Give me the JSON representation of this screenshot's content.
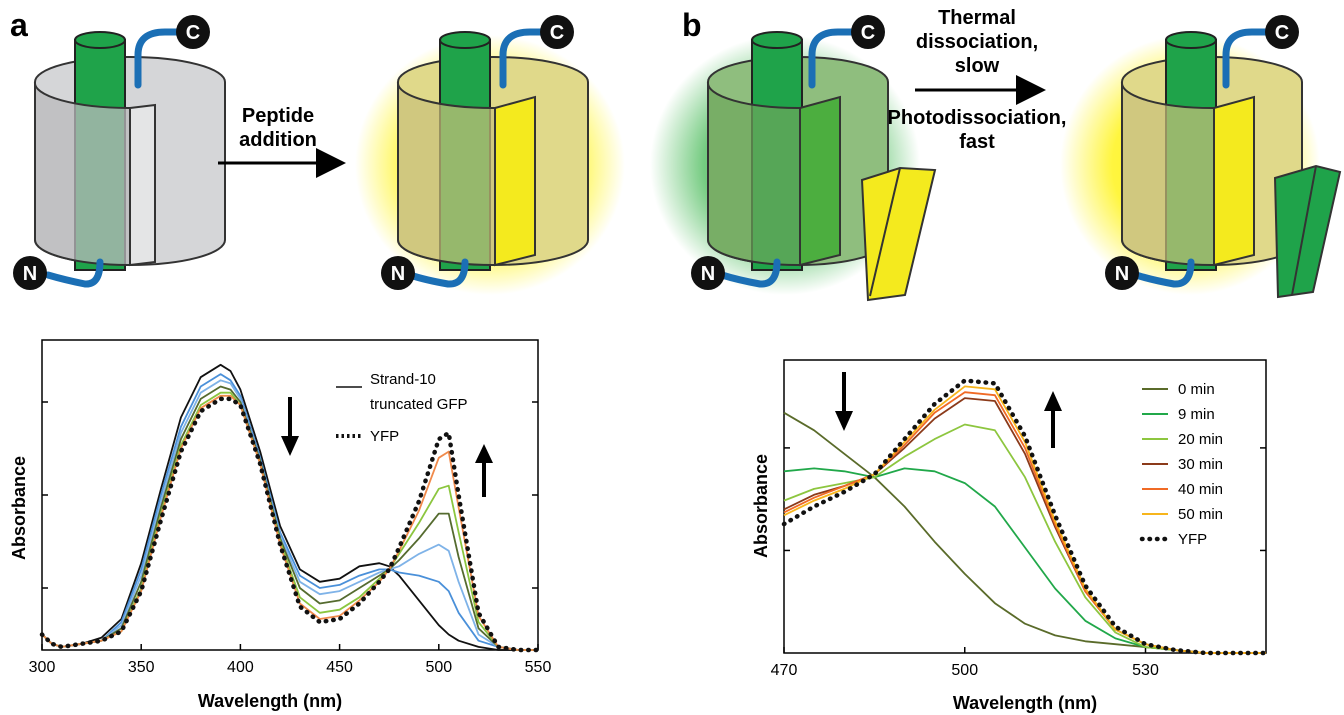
{
  "panels": {
    "a": {
      "letter": "a",
      "arrow_label_lines": [
        "Peptide",
        "addition"
      ],
      "termini": {
        "n": "N",
        "c": "C"
      }
    },
    "b": {
      "letter": "b",
      "arrow_label_top_lines": [
        "Thermal",
        "dissociation,",
        "slow"
      ],
      "arrow_label_bottom_lines": [
        "Photodissociation,",
        "fast"
      ],
      "termini": {
        "n": "N",
        "c": "C"
      }
    }
  },
  "colors": {
    "strand_green": "#1fa34a",
    "linker_blue": "#1b6fb5",
    "yellow": "#f4ea1e",
    "grey_barrel": "#cfd0d2",
    "yellow_barrel": "#d6cf7a",
    "green_barrel": "#7bb06a"
  },
  "chart_data": [
    {
      "type": "line",
      "panel": "a",
      "xlabel": "Wavelength (nm)",
      "ylabel": "Absorbance",
      "xlim": [
        300,
        550
      ],
      "ylim": [
        0,
        1
      ],
      "xticks": [
        300,
        350,
        400,
        450,
        500,
        550
      ],
      "yticks": [
        0.2,
        0.5,
        0.8
      ],
      "legend_placement": "top-right",
      "annotations": {
        "down_arrow_x": 425,
        "up_arrow_x": 530
      },
      "series": [
        {
          "name": "Strand-10 truncated GFP",
          "color": "#111111",
          "style": "solid",
          "x": [
            300,
            305,
            310,
            320,
            330,
            340,
            350,
            360,
            370,
            380,
            390,
            395,
            400,
            410,
            420,
            430,
            440,
            450,
            460,
            470,
            475,
            480,
            490,
            500,
            505,
            510,
            520,
            530,
            540,
            550
          ],
          "y": [
            0.05,
            0.02,
            0.01,
            0.02,
            0.04,
            0.1,
            0.28,
            0.52,
            0.75,
            0.88,
            0.92,
            0.9,
            0.84,
            0.64,
            0.4,
            0.26,
            0.22,
            0.23,
            0.27,
            0.28,
            0.27,
            0.24,
            0.16,
            0.08,
            0.05,
            0.03,
            0.01,
            0.0,
            0.0,
            0.0
          ]
        },
        {
          "color": "#4a90d9",
          "style": "solid",
          "x": [
            300,
            305,
            310,
            320,
            330,
            340,
            350,
            360,
            370,
            380,
            390,
            395,
            400,
            410,
            420,
            430,
            440,
            450,
            460,
            470,
            475,
            480,
            490,
            500,
            505,
            510,
            520,
            530,
            540,
            550
          ],
          "y": [
            0.05,
            0.02,
            0.01,
            0.02,
            0.03,
            0.09,
            0.26,
            0.5,
            0.72,
            0.85,
            0.89,
            0.87,
            0.82,
            0.62,
            0.38,
            0.24,
            0.2,
            0.21,
            0.24,
            0.26,
            0.26,
            0.25,
            0.24,
            0.22,
            0.19,
            0.12,
            0.03,
            0.01,
            0.0,
            0.0
          ]
        },
        {
          "color": "#7fb3e8",
          "style": "solid",
          "x": [
            300,
            305,
            310,
            320,
            330,
            340,
            350,
            360,
            370,
            380,
            390,
            395,
            400,
            410,
            420,
            430,
            440,
            450,
            460,
            470,
            475,
            480,
            490,
            500,
            505,
            510,
            520,
            530,
            540,
            550
          ],
          "y": [
            0.05,
            0.02,
            0.01,
            0.02,
            0.03,
            0.08,
            0.24,
            0.48,
            0.7,
            0.83,
            0.87,
            0.86,
            0.81,
            0.61,
            0.37,
            0.22,
            0.18,
            0.19,
            0.22,
            0.25,
            0.26,
            0.27,
            0.31,
            0.34,
            0.32,
            0.22,
            0.05,
            0.01,
            0.0,
            0.0
          ]
        },
        {
          "color": "#556b2f",
          "style": "solid",
          "x": [
            300,
            305,
            310,
            320,
            330,
            340,
            350,
            360,
            370,
            380,
            390,
            395,
            400,
            410,
            420,
            430,
            440,
            450,
            460,
            470,
            475,
            480,
            490,
            500,
            505,
            510,
            520,
            530,
            540,
            550
          ],
          "y": [
            0.05,
            0.02,
            0.01,
            0.02,
            0.03,
            0.07,
            0.22,
            0.46,
            0.68,
            0.81,
            0.85,
            0.84,
            0.8,
            0.61,
            0.36,
            0.2,
            0.15,
            0.16,
            0.2,
            0.24,
            0.26,
            0.29,
            0.36,
            0.44,
            0.44,
            0.3,
            0.07,
            0.01,
            0.0,
            0.0
          ]
        },
        {
          "color": "#8cc63f",
          "style": "solid",
          "x": [
            300,
            305,
            310,
            320,
            330,
            340,
            350,
            360,
            370,
            380,
            390,
            395,
            400,
            410,
            420,
            430,
            440,
            450,
            460,
            470,
            475,
            480,
            490,
            500,
            505,
            510,
            520,
            530,
            540,
            550
          ],
          "y": [
            0.05,
            0.02,
            0.01,
            0.02,
            0.03,
            0.06,
            0.2,
            0.44,
            0.66,
            0.79,
            0.83,
            0.83,
            0.79,
            0.6,
            0.35,
            0.17,
            0.12,
            0.13,
            0.17,
            0.23,
            0.26,
            0.31,
            0.41,
            0.52,
            0.53,
            0.38,
            0.09,
            0.01,
            0.0,
            0.0
          ]
        },
        {
          "color": "#f08a4b",
          "style": "solid",
          "x": [
            300,
            305,
            310,
            320,
            330,
            340,
            350,
            360,
            370,
            380,
            390,
            395,
            400,
            410,
            420,
            430,
            440,
            450,
            460,
            470,
            475,
            480,
            490,
            500,
            505,
            510,
            520,
            530,
            540,
            550
          ],
          "y": [
            0.05,
            0.02,
            0.01,
            0.02,
            0.03,
            0.06,
            0.19,
            0.43,
            0.65,
            0.78,
            0.82,
            0.82,
            0.79,
            0.6,
            0.34,
            0.15,
            0.1,
            0.11,
            0.16,
            0.22,
            0.26,
            0.32,
            0.45,
            0.62,
            0.64,
            0.46,
            0.11,
            0.01,
            0.0,
            0.0
          ]
        },
        {
          "name": "YFP",
          "color": "#111111",
          "style": "dotted",
          "x": [
            300,
            305,
            310,
            320,
            330,
            340,
            350,
            360,
            370,
            380,
            390,
            395,
            400,
            410,
            420,
            430,
            440,
            450,
            460,
            470,
            475,
            480,
            490,
            500,
            505,
            510,
            520,
            530,
            540,
            550
          ],
          "y": [
            0.05,
            0.02,
            0.01,
            0.02,
            0.03,
            0.06,
            0.19,
            0.42,
            0.64,
            0.77,
            0.81,
            0.81,
            0.79,
            0.6,
            0.34,
            0.14,
            0.09,
            0.1,
            0.15,
            0.22,
            0.26,
            0.33,
            0.48,
            0.68,
            0.7,
            0.5,
            0.12,
            0.01,
            0.0,
            0.0
          ]
        }
      ]
    },
    {
      "type": "line",
      "panel": "b",
      "xlabel": "Wavelength (nm)",
      "ylabel": "Absorbance",
      "xlim": [
        470,
        550
      ],
      "ylim": [
        0,
        1
      ],
      "xticks": [
        470,
        500,
        530
      ],
      "yticks": [
        0.35,
        0.7
      ],
      "legend_placement": "top-right",
      "annotations": {
        "down_arrow_x": 476,
        "up_arrow_x": 520
      },
      "series": [
        {
          "name": "0 min",
          "color": "#5a6b2a",
          "style": "solid",
          "x": [
            470,
            475,
            480,
            485,
            490,
            495,
            500,
            505,
            510,
            515,
            520,
            525,
            530,
            535,
            540,
            545,
            550
          ],
          "y": [
            0.82,
            0.76,
            0.68,
            0.6,
            0.5,
            0.38,
            0.27,
            0.17,
            0.1,
            0.06,
            0.04,
            0.03,
            0.02,
            0.01,
            0.0,
            0.0,
            0.0
          ]
        },
        {
          "name": "9 min",
          "color": "#21a84a",
          "style": "solid",
          "x": [
            470,
            475,
            480,
            485,
            490,
            495,
            500,
            505,
            510,
            515,
            520,
            525,
            530,
            535,
            540,
            545,
            550
          ],
          "y": [
            0.62,
            0.63,
            0.62,
            0.6,
            0.63,
            0.62,
            0.58,
            0.5,
            0.36,
            0.22,
            0.11,
            0.05,
            0.02,
            0.01,
            0.0,
            0.0,
            0.0
          ]
        },
        {
          "name": "20 min",
          "color": "#8dc63f",
          "style": "solid",
          "x": [
            470,
            475,
            480,
            485,
            490,
            495,
            500,
            505,
            510,
            515,
            520,
            525,
            530,
            535,
            540,
            545,
            550
          ],
          "y": [
            0.52,
            0.56,
            0.58,
            0.6,
            0.67,
            0.73,
            0.78,
            0.76,
            0.6,
            0.38,
            0.19,
            0.07,
            0.02,
            0.01,
            0.0,
            0.0,
            0.0
          ]
        },
        {
          "name": "30 min",
          "color": "#8b3a1a",
          "style": "solid",
          "x": [
            470,
            475,
            480,
            485,
            490,
            495,
            500,
            505,
            510,
            515,
            520,
            525,
            530,
            535,
            540,
            545,
            550
          ],
          "y": [
            0.49,
            0.54,
            0.57,
            0.61,
            0.7,
            0.8,
            0.87,
            0.86,
            0.68,
            0.43,
            0.21,
            0.08,
            0.03,
            0.01,
            0.0,
            0.0,
            0.0
          ]
        },
        {
          "name": "40 min",
          "color": "#f06a25",
          "style": "solid",
          "x": [
            470,
            475,
            480,
            485,
            490,
            495,
            500,
            505,
            510,
            515,
            520,
            525,
            530,
            535,
            540,
            545,
            550
          ],
          "y": [
            0.48,
            0.53,
            0.57,
            0.61,
            0.71,
            0.82,
            0.89,
            0.88,
            0.7,
            0.44,
            0.21,
            0.08,
            0.03,
            0.01,
            0.0,
            0.0,
            0.0
          ]
        },
        {
          "name": "50 min",
          "color": "#f7b51c",
          "style": "solid",
          "x": [
            470,
            475,
            480,
            485,
            490,
            495,
            500,
            505,
            510,
            515,
            520,
            525,
            530,
            535,
            540,
            545,
            550
          ],
          "y": [
            0.47,
            0.52,
            0.56,
            0.61,
            0.72,
            0.83,
            0.91,
            0.9,
            0.72,
            0.45,
            0.22,
            0.08,
            0.03,
            0.01,
            0.0,
            0.0,
            0.0
          ]
        },
        {
          "name": "YFP",
          "color": "#111111",
          "style": "dotted",
          "x": [
            470,
            475,
            480,
            485,
            490,
            495,
            500,
            505,
            510,
            515,
            520,
            525,
            530,
            535,
            540,
            545,
            550
          ],
          "y": [
            0.44,
            0.5,
            0.55,
            0.61,
            0.73,
            0.85,
            0.93,
            0.92,
            0.74,
            0.47,
            0.23,
            0.09,
            0.03,
            0.01,
            0.0,
            0.0,
            0.0
          ]
        }
      ]
    }
  ]
}
